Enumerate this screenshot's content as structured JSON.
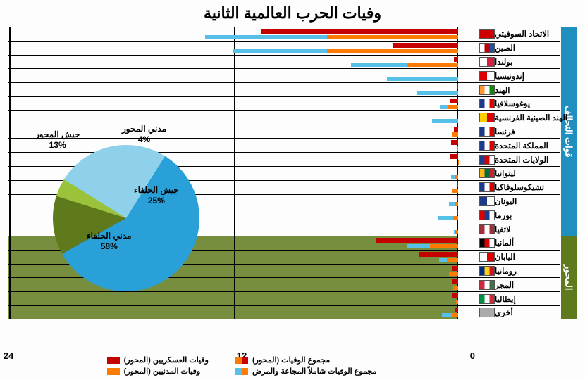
{
  "title": "وفيات الحرب العالمية الثانية",
  "xaxis": {
    "max": 24,
    "ticks": [
      0,
      12,
      24
    ]
  },
  "colors": {
    "mil_dark": "#c40000",
    "mil_light": "#ff7a00",
    "civ_dark": "#ff7a00",
    "civ_light": "#57c0e8",
    "allies_band": "#1e8fbf",
    "axis_band": "#5f7a1d",
    "axis_bg": "#5f7a1d",
    "grid": "#000000",
    "bg": "#ffffff"
  },
  "groups": [
    {
      "key": "allies",
      "label": "قوات التحالف",
      "color": "#1e8fbf",
      "rows": [
        {
          "label": "الاتحاد السوفيتي",
          "flag": [
            "#cc0000"
          ],
          "mil": [
            10.5,
            0
          ],
          "civ": [
            7,
            6.5
          ]
        },
        {
          "label": "الصين",
          "flag": [
            "#fff",
            "#b00",
            "#1e53a0"
          ],
          "mil": [
            3.5,
            0
          ],
          "civ": [
            7,
            5
          ]
        },
        {
          "label": "بولندا",
          "flag": [
            "#fff",
            "#d4213d"
          ],
          "mil": [
            0.24,
            0
          ],
          "civ": [
            2.7,
            3
          ]
        },
        {
          "label": "إندونيسيا",
          "flag": [
            "#d00",
            "#fff"
          ],
          "mil": [
            0,
            0
          ],
          "civ": [
            0,
            3.8
          ]
        },
        {
          "label": "الهند",
          "flag": [
            "#ff9933",
            "#fff",
            "#138808"
          ],
          "mil": [
            0.09,
            0
          ],
          "civ": [
            0,
            2.2
          ]
        },
        {
          "label": "يوغوسلافيا",
          "flag": [
            "#1e3a8a",
            "#fff",
            "#d00"
          ],
          "mil": [
            0.45,
            0
          ],
          "civ": [
            0.58,
            0.4
          ]
        },
        {
          "label": "الهند الصينية الفرنسية",
          "flag": [
            "#ffcc00",
            "#d00"
          ],
          "mil": [
            0,
            0
          ],
          "civ": [
            0,
            1.4
          ]
        },
        {
          "label": "فرنسا",
          "flag": [
            "#1e3a8a",
            "#fff",
            "#d00"
          ],
          "mil": [
            0.22,
            0
          ],
          "civ": [
            0.35,
            0
          ]
        },
        {
          "label": "المملكة المتحدة",
          "flag": [
            "#1e3a8a",
            "#fff",
            "#d00"
          ],
          "mil": [
            0.38,
            0
          ],
          "civ": [
            0.07,
            0
          ]
        },
        {
          "label": "الولايات المتحدة",
          "flag": [
            "#1e3a8a",
            "#d00",
            "#fff"
          ],
          "mil": [
            0.42,
            0
          ],
          "civ": [
            0.01,
            0
          ]
        },
        {
          "label": "ليتوانيا",
          "flag": [
            "#fdb913",
            "#006a44",
            "#c1272d"
          ],
          "mil": [
            0,
            0
          ],
          "civ": [
            0.14,
            0.22
          ]
        },
        {
          "label": "تشيكوسلوفاكيا",
          "flag": [
            "#1e3a8a",
            "#fff",
            "#d00"
          ],
          "mil": [
            0.03,
            0
          ],
          "civ": [
            0.3,
            0
          ]
        },
        {
          "label": "اليونان",
          "flag": [
            "#1e3a8a",
            "#fff"
          ],
          "mil": [
            0.03,
            0
          ],
          "civ": [
            0.15,
            0.35
          ]
        },
        {
          "label": "بورما",
          "flag": [
            "#d00",
            "#1e3a8a",
            "#fff"
          ],
          "mil": [
            0.02,
            0
          ],
          "civ": [
            0.25,
            0.8
          ]
        },
        {
          "label": "لاتفيا",
          "flag": [
            "#9e3039",
            "#fff",
            "#9e3039"
          ],
          "mil": [
            0,
            0
          ],
          "civ": [
            0.15,
            0.07
          ]
        }
      ]
    },
    {
      "key": "axis",
      "label": "المحور",
      "color": "#5f7a1d",
      "rows": [
        {
          "label": "ألمانيا",
          "flag": [
            "#000",
            "#d00",
            "#fff"
          ],
          "mil": [
            4.4,
            0
          ],
          "civ": [
            1.5,
            1.2
          ]
        },
        {
          "label": "اليابان",
          "flag": [
            "#fff",
            "#d00"
          ],
          "mil": [
            2.1,
            0
          ],
          "civ": [
            0.6,
            0.4
          ]
        },
        {
          "label": "رومانيا",
          "flag": [
            "#002b7f",
            "#fcd116",
            "#ce1126"
          ],
          "mil": [
            0.3,
            0
          ],
          "civ": [
            0.5,
            0
          ]
        },
        {
          "label": "المجر",
          "flag": [
            "#cd2a3e",
            "#fff",
            "#436f4d"
          ],
          "mil": [
            0.3,
            0
          ],
          "civ": [
            0.28,
            0
          ]
        },
        {
          "label": "إيطاليا",
          "flag": [
            "#009246",
            "#fff",
            "#ce2b37"
          ],
          "mil": [
            0.33,
            0
          ],
          "civ": [
            0.1,
            0
          ]
        },
        {
          "label": "أخرى",
          "flag": [
            "#aaa"
          ],
          "mil": [
            0.2,
            0
          ],
          "civ": [
            0.35,
            0.5
          ]
        }
      ]
    }
  ],
  "pie": {
    "slices": [
      {
        "label": "جيش الحلفاء",
        "pct": 25,
        "color": "#8fd1ea"
      },
      {
        "label": "مدني الحلفاء",
        "pct": 58,
        "color": "#2aa0d8"
      },
      {
        "label": "جيش المحور",
        "pct": 13,
        "color": "#5f7a1d"
      },
      {
        "label": "مدني المحور",
        "pct": 4,
        "color": "#9ac23b"
      }
    ]
  },
  "legend": {
    "col1": [
      {
        "label": "وفيات العسكريين (المحور)",
        "sw": [
          "#c40000"
        ]
      },
      {
        "label": "وفيات المدنيين (المحور)",
        "sw": [
          "#ff7a00"
        ]
      }
    ],
    "col2": [
      {
        "label": "مجموع الوفيات (المحور)",
        "sw": [
          "#c40000",
          "#ff7a00"
        ]
      },
      {
        "label": "مجموع الوفيات شاملاً المجاعة والمرض",
        "sw": [
          "#ff7a00",
          "#57c0e8"
        ]
      }
    ]
  }
}
